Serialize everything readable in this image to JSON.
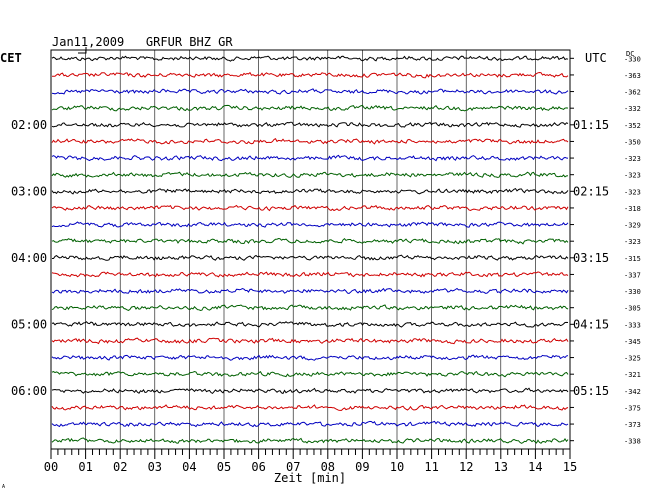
{
  "chart_data": {
    "type": "line",
    "title": "Jan11,2009   GRFUR BHZ GR",
    "left_zone_label": "CET",
    "right_zone_label": "UTC",
    "dc_header": "DC",
    "xlabel": "Zeit [min]",
    "xlim": [
      0,
      15
    ],
    "x_ticks": [
      "00",
      "01",
      "02",
      "03",
      "04",
      "05",
      "06",
      "07",
      "08",
      "09",
      "10",
      "11",
      "12",
      "13",
      "14",
      "15"
    ],
    "left_hour_labels": [
      "02:00",
      "03:00",
      "04:00",
      "05:00",
      "06:00"
    ],
    "right_hour_labels": [
      "01:15",
      "02:15",
      "03:15",
      "04:15",
      "05:15"
    ],
    "trace_colors": [
      "#000000",
      "#d00000",
      "#0000c0",
      "#006000"
    ],
    "trace_dc_offsets": [
      -330,
      -363,
      -362,
      -332,
      -352,
      -350,
      -323,
      -323,
      -323,
      -318,
      -329,
      -323,
      -315,
      -337,
      -330,
      -305,
      -333,
      -345,
      -325,
      -321,
      -342,
      -375,
      -373,
      -338
    ],
    "grid": true,
    "footer_mark": "A"
  }
}
